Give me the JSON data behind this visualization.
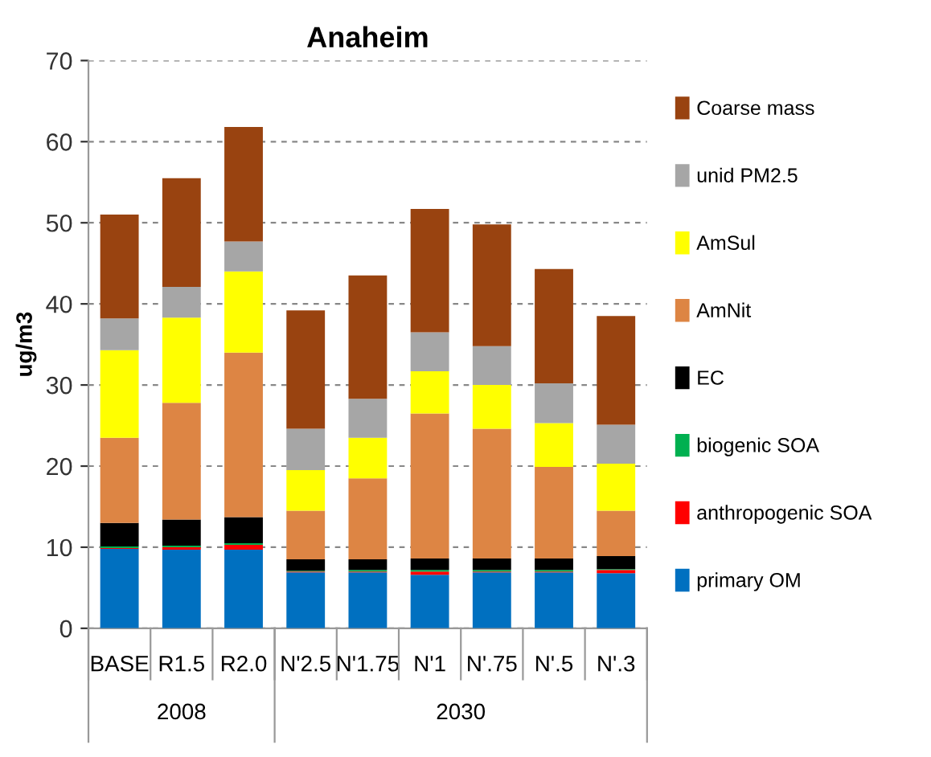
{
  "chart_data": {
    "type": "bar",
    "stacked": true,
    "title": "Anaheim",
    "ylabel": "ug/m3",
    "categories": [
      "BASE",
      "R1.5",
      "R2.0",
      "N'2.5",
      "N'1.75",
      "N'1",
      "N'.75",
      "N'.5",
      "N'.3"
    ],
    "series": [
      {
        "name": "primary OM",
        "color": "#0070c0",
        "values": [
          9.8,
          9.7,
          9.7,
          6.9,
          6.9,
          6.6,
          6.9,
          6.9,
          6.8
        ]
      },
      {
        "name": "anthropogenic SOA",
        "color": "#ff0000",
        "values": [
          0.1,
          0.3,
          0.6,
          0.1,
          0.1,
          0.4,
          0.1,
          0.1,
          0.4
        ]
      },
      {
        "name": "biogenic SOA",
        "color": "#00b050",
        "values": [
          0.2,
          0.2,
          0.2,
          0.1,
          0.2,
          0.2,
          0.2,
          0.2,
          0.1
        ]
      },
      {
        "name": "EC",
        "color": "#000000",
        "values": [
          2.9,
          3.2,
          3.2,
          1.4,
          1.3,
          1.4,
          1.4,
          1.4,
          1.6
        ]
      },
      {
        "name": "AmNit",
        "color": "#dd8544",
        "values": [
          10.5,
          14.4,
          20.3,
          6.0,
          10.0,
          17.9,
          16.0,
          11.3,
          5.6
        ]
      },
      {
        "name": "AmSul",
        "color": "#ffff00",
        "values": [
          10.8,
          10.5,
          10.0,
          5.0,
          5.0,
          5.2,
          5.4,
          5.4,
          5.8
        ]
      },
      {
        "name": "unid PM2.5",
        "color": "#a6a6a6",
        "values": [
          3.9,
          3.8,
          3.7,
          5.1,
          4.8,
          4.8,
          4.8,
          4.9,
          4.8
        ]
      },
      {
        "name": "Coarse mass",
        "color": "#994310",
        "values": [
          12.8,
          13.4,
          14.1,
          14.6,
          15.2,
          15.2,
          15.0,
          14.1,
          13.4
        ]
      }
    ],
    "ylim": [
      0,
      70
    ],
    "yticks": [
      0,
      10,
      20,
      30,
      40,
      50,
      60,
      70
    ],
    "grid": "y",
    "legend": "right",
    "annotations": [
      "2008",
      "2030"
    ]
  }
}
